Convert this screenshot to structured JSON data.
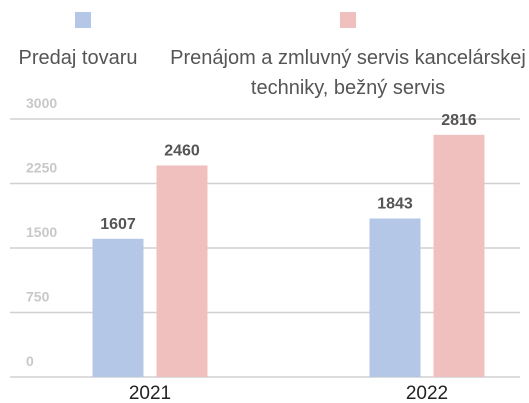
{
  "chart_data": {
    "type": "bar",
    "categories": [
      "2021",
      "2022"
    ],
    "series": [
      {
        "name": "Predaj tovaru",
        "color": "#b4c7e7",
        "values": [
          1607,
          1843
        ]
      },
      {
        "name": "Prenájom a zmluvný servis kancelárskej techniky, bežný servis",
        "color": "#f0c0bf",
        "values": [
          2460,
          2816
        ]
      }
    ],
    "ylim": [
      0,
      3000
    ],
    "yticks": [
      0,
      750,
      1500,
      2250,
      3000
    ],
    "grid": true,
    "legend": "top"
  }
}
